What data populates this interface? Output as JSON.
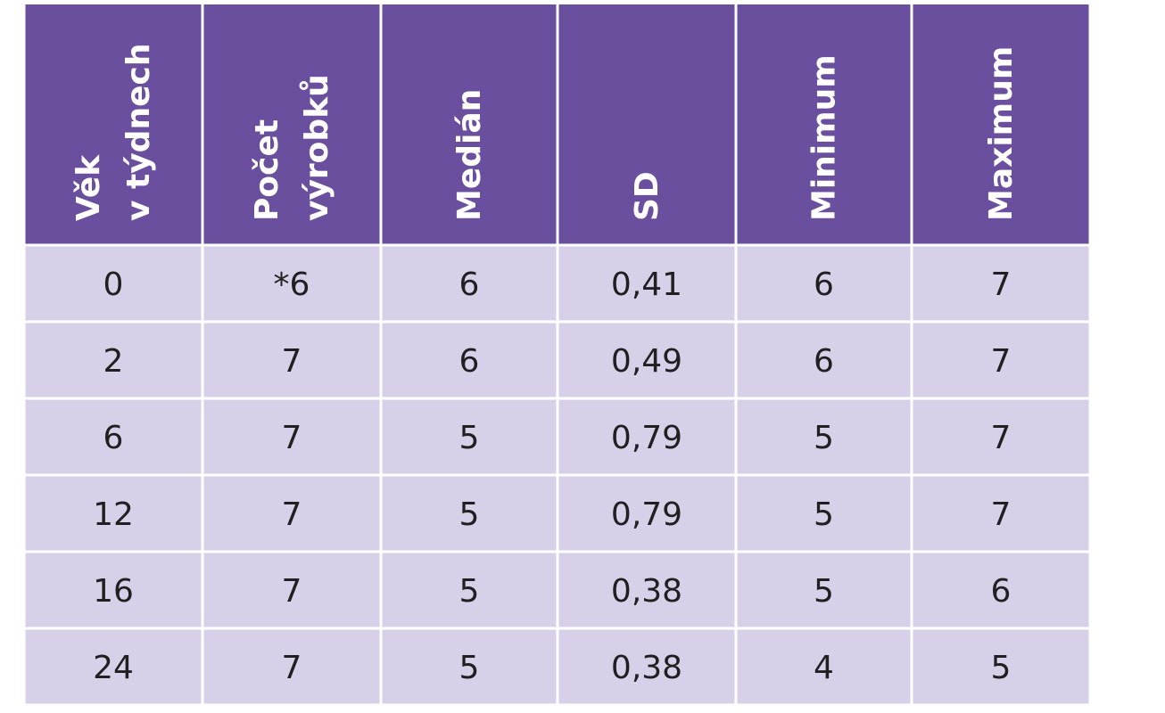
{
  "table": {
    "header": [
      [
        "Věk",
        "v týdnech"
      ],
      [
        "Počet",
        "výrobků"
      ],
      [
        "Medián"
      ],
      [
        "SD"
      ],
      [
        "Minimum"
      ],
      [
        "Maximum"
      ]
    ],
    "rows": [
      [
        "0",
        "*6",
        "6",
        "0,41",
        "6",
        "7"
      ],
      [
        "2",
        "7",
        "6",
        "0,49",
        "6",
        "7"
      ],
      [
        "6",
        "7",
        "5",
        "0,79",
        "5",
        "7"
      ],
      [
        "12",
        "7",
        "5",
        "0,79",
        "5",
        "7"
      ],
      [
        "16",
        "7",
        "5",
        "0,38",
        "5",
        "6"
      ],
      [
        "24",
        "7",
        "5",
        "0,38",
        "4",
        "5"
      ]
    ]
  }
}
